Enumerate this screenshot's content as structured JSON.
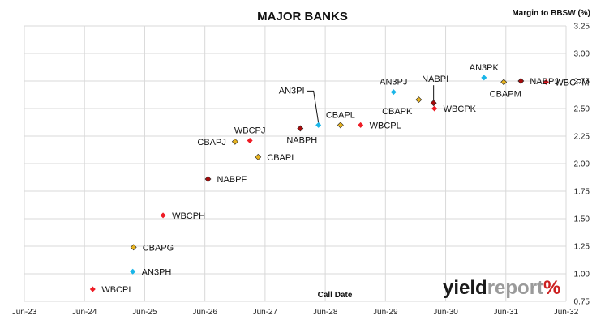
{
  "colors": {
    "red": "#ee1c25",
    "darkred": "#a50c0c",
    "blue": "#19b5e8",
    "gold": "#e8b420",
    "grid": "#d9d9d9",
    "axis_text": "#222222"
  },
  "logo": {
    "text_dark": "yield",
    "text_light": "report",
    "text_accent": "%"
  },
  "chart_data": {
    "type": "scatter",
    "title": "MAJOR BANKS",
    "xlabel": "Call Date",
    "ylabel": "Margin to BBSW (%)",
    "x_type": "date",
    "xlim": [
      "2023-06-01",
      "2032-06-01"
    ],
    "x_tick_labels": [
      "Jun-23",
      "Jun-24",
      "Jun-25",
      "Jun-26",
      "Jun-27",
      "Jun-28",
      "Jun-29",
      "Jun-30",
      "Jun-31",
      "Jun-32"
    ],
    "ylim": [
      0.75,
      3.25
    ],
    "y_ticks": [
      0.75,
      1.0,
      1.25,
      1.5,
      1.75,
      2.0,
      2.25,
      2.5,
      2.75,
      3.0,
      3.25
    ],
    "y_tick_labels": [
      "0.75",
      "1.00",
      "1.25",
      "1.50",
      "1.75",
      "2.00",
      "2.25",
      "2.50",
      "2.75",
      "3.00",
      "3.25"
    ],
    "y_axis_side": "right",
    "grid": true,
    "points": [
      {
        "label": "WBCPI",
        "x": "2024-07-20",
        "y": 0.86,
        "color": "red",
        "label_side": "right"
      },
      {
        "label": "AN3PH",
        "x": "2025-03-20",
        "y": 1.02,
        "color": "blue",
        "label_side": "right"
      },
      {
        "label": "CBAPG",
        "x": "2025-03-25",
        "y": 1.24,
        "color": "gold",
        "label_side": "right"
      },
      {
        "label": "WBCPH",
        "x": "2025-09-20",
        "y": 1.53,
        "color": "red",
        "label_side": "right"
      },
      {
        "label": "NABPF",
        "x": "2026-06-20",
        "y": 1.86,
        "color": "darkred",
        "label_side": "right"
      },
      {
        "label": "CBAPJ",
        "x": "2026-12-01",
        "y": 2.2,
        "color": "gold",
        "label_side": "left"
      },
      {
        "label": "WBCPJ",
        "x": "2027-03-01",
        "y": 2.21,
        "color": "red",
        "label_side": "above"
      },
      {
        "label": "CBAPI",
        "x": "2027-04-20",
        "y": 2.06,
        "color": "gold",
        "label_side": "right"
      },
      {
        "label": "NABPH",
        "x": "2028-01-01",
        "y": 2.32,
        "color": "darkred",
        "label_side": "below"
      },
      {
        "label": "AN3PI",
        "x": "2028-04-20",
        "y": 2.35,
        "color": "blue",
        "label_side": "callout"
      },
      {
        "label": "CBAPL",
        "x": "2028-09-01",
        "y": 2.35,
        "color": "gold",
        "label_side": "above"
      },
      {
        "label": "WBCPL",
        "x": "2029-01-01",
        "y": 2.35,
        "color": "red",
        "label_side": "right"
      },
      {
        "label": "AN3PJ",
        "x": "2029-07-20",
        "y": 2.65,
        "color": "blue",
        "label_side": "above"
      },
      {
        "label": "CBAPK",
        "x": "2029-12-20",
        "y": 2.58,
        "color": "gold",
        "label_side": "below-left"
      },
      {
        "label": "NABPI",
        "x": "2030-03-20",
        "y": 2.55,
        "color": "darkred",
        "label_side": "callout"
      },
      {
        "label": "WBCPK",
        "x": "2030-03-25",
        "y": 2.5,
        "color": "red",
        "label_side": "right"
      },
      {
        "label": "AN3PK",
        "x": "2031-01-20",
        "y": 2.78,
        "color": "blue",
        "label_side": "above"
      },
      {
        "label": "CBAPM",
        "x": "2031-05-20",
        "y": 2.74,
        "color": "gold",
        "label_side": "below"
      },
      {
        "label": "NABPJ",
        "x": "2031-09-01",
        "y": 2.75,
        "color": "darkred",
        "label_side": "right"
      },
      {
        "label": "WBCPM",
        "x": "2032-02-01",
        "y": 2.74,
        "color": "red",
        "label_side": "right"
      }
    ]
  }
}
